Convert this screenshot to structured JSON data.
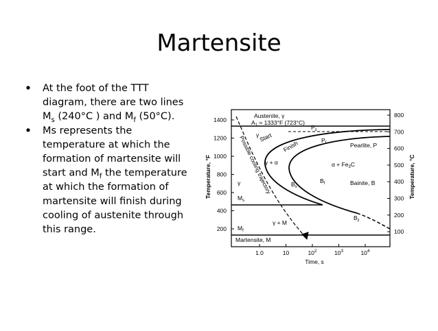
{
  "title": "Martensite",
  "bullets": [
    {
      "lines": [
        [
          {
            "t": "At the foot of the TTT"
          }
        ],
        [
          {
            "t": "diagram, there are two lines"
          }
        ],
        [
          {
            "t": "M"
          },
          {
            "sub": "s"
          },
          {
            "t": " (240°C ) and M"
          },
          {
            "sub": "f"
          },
          {
            "t": " (50°C)."
          }
        ]
      ]
    },
    {
      "lines": [
        [
          {
            "t": "Ms represents the"
          }
        ],
        [
          {
            "t": "temperature at which the"
          }
        ],
        [
          {
            "t": "formation of martensite will"
          }
        ],
        [
          {
            "t": "start and M"
          },
          {
            "sub": "f"
          },
          {
            "t": " the temperature"
          }
        ],
        [
          {
            "t": "at which the formation of"
          }
        ],
        [
          {
            "t": "martensite will finish during"
          }
        ],
        [
          {
            "t": "cooling of austenite through"
          }
        ],
        [
          {
            "t": "this range."
          }
        ]
      ]
    }
  ],
  "figure": {
    "y_label_left": "Temperature, °F",
    "y_label_right": "Temperature, °C",
    "x_label": "Time, s",
    "left_ticks": [
      "1400",
      "1200",
      "1000",
      "800",
      "600",
      "400",
      "200"
    ],
    "right_ticks": [
      "800",
      "700",
      "600",
      "500",
      "400",
      "300",
      "200",
      "100"
    ],
    "x_ticks": [
      {
        "base": "1.0"
      },
      {
        "base": "10"
      },
      {
        "base": "10",
        "sup": "2"
      },
      {
        "base": "10",
        "sup": "3"
      },
      {
        "base": "10",
        "sup": "4"
      }
    ],
    "labels": {
      "austenite": "Austenite, γ",
      "a1": [
        {
          "t": "A"
        },
        {
          "sub": "1"
        },
        {
          "t": " = 1333°F (723°C)"
        }
      ],
      "ps": [
        {
          "t": "P"
        },
        {
          "sub": "s"
        }
      ],
      "pf": [
        {
          "t": "P"
        },
        {
          "sub": "f"
        }
      ],
      "start": "Start",
      "finish": "Finish",
      "pearlite": "Pearlite, P",
      "gamma_top": "γ",
      "gamma_alpha": "γ + α",
      "alpha_fe3c": [
        {
          "t": "α + Fe"
        },
        {
          "sub": "3"
        },
        {
          "t": "C"
        }
      ],
      "gamma_left": "γ",
      "bs": [
        {
          "t": "B"
        },
        {
          "sub": "s"
        }
      ],
      "bf": [
        {
          "t": "B"
        },
        {
          "sub": "f"
        }
      ],
      "bainite": "Bainite, B",
      "bz": [
        {
          "t": "B"
        },
        {
          "sub": "z"
        }
      ],
      "ms": [
        {
          "t": "M"
        },
        {
          "sub": "s"
        }
      ],
      "mf": [
        {
          "t": "M"
        },
        {
          "sub": "f"
        }
      ],
      "gamma_m": "γ + M",
      "martensite": "Martensite, M",
      "trajectory": "Possible cooling trajectory"
    }
  }
}
